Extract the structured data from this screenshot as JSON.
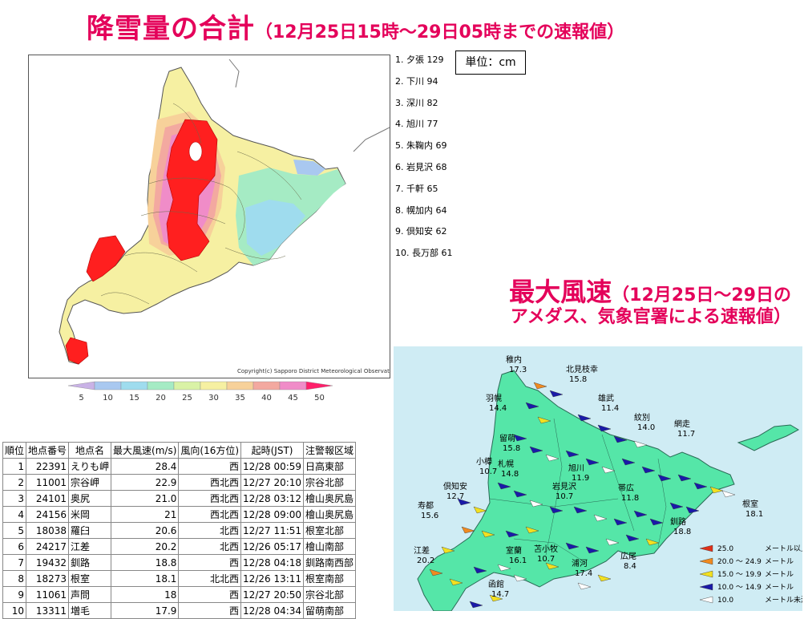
{
  "title_snow": {
    "main": "降雪量の合計",
    "sub": "（12月25日15時～29日05時までの速報値）"
  },
  "unit_label": "単位：cm",
  "snow_ranking": [
    {
      "rank": "1.",
      "name": "夕張",
      "value": "129"
    },
    {
      "rank": "2.",
      "name": "下川",
      "value": "94"
    },
    {
      "rank": "3.",
      "name": "深川",
      "value": "82"
    },
    {
      "rank": "4.",
      "name": "旭川",
      "value": "77"
    },
    {
      "rank": "5.",
      "name": "朱鞠内",
      "value": "69"
    },
    {
      "rank": "6.",
      "name": "岩見沢",
      "value": "68"
    },
    {
      "rank": "7.",
      "name": "千軒",
      "value": "65"
    },
    {
      "rank": "8.",
      "name": "幌加内",
      "value": "64"
    },
    {
      "rank": "9.",
      "name": "倶知安",
      "value": "62"
    },
    {
      "rank": "10.",
      "name": "長万部",
      "value": "61"
    }
  ],
  "copyright": "Copyright(c) Sapporo District Meteorological Observatory",
  "colorbar": {
    "ticks": [
      "5",
      "10",
      "15",
      "20",
      "25",
      "30",
      "35",
      "40",
      "45",
      "50"
    ],
    "colors": [
      "#c9b2e6",
      "#a9c8f0",
      "#9fdcee",
      "#a5ebc4",
      "#d9f2a6",
      "#f6f0a2",
      "#f7d19a",
      "#f3a9a0",
      "#f08cc8",
      "#ff1f6a"
    ]
  },
  "title_wind": {
    "main": "最大風速",
    "sub1": "（12月25日～29日の",
    "sub2": "アメダス、気象官署による速報値）"
  },
  "wind_table": {
    "headers": [
      "順位",
      "地点番号",
      "地点名",
      "最大風速(m/s)",
      "風向(16方位)",
      "起時(JST)",
      "注警報区域"
    ],
    "rows": [
      [
        "1",
        "22391",
        "えりも岬",
        "28.4",
        "西",
        "12/28 00:59",
        "日高東部"
      ],
      [
        "2",
        "11001",
        "宗谷岬",
        "22.9",
        "西北西",
        "12/27 20:10",
        "宗谷北部"
      ],
      [
        "3",
        "24101",
        "奥尻",
        "21.0",
        "西北西",
        "12/28 03:12",
        "檜山奥尻島"
      ],
      [
        "4",
        "24156",
        "米岡",
        "21",
        "西北西",
        "12/28 09:00",
        "檜山奥尻島"
      ],
      [
        "5",
        "18038",
        "羅臼",
        "20.6",
        "北西",
        "12/27 11:51",
        "根室北部"
      ],
      [
        "6",
        "24217",
        "江差",
        "20.2",
        "北西",
        "12/26 05:17",
        "檜山南部"
      ],
      [
        "7",
        "19432",
        "釧路",
        "18.8",
        "西",
        "12/28 04:18",
        "釧路南西部"
      ],
      [
        "8",
        "18273",
        "根室",
        "18.1",
        "北北西",
        "12/26 13:11",
        "根室南部"
      ],
      [
        "9",
        "11061",
        "声問",
        "18",
        "西",
        "12/27 20:50",
        "宗谷北部"
      ],
      [
        "10",
        "13311",
        "増毛",
        "17.9",
        "西",
        "12/28 04:34",
        "留萌南部"
      ]
    ]
  },
  "wind_stations": [
    {
      "name": "稚内",
      "value": "17.3"
    },
    {
      "name": "北見枝幸",
      "value": "15.8"
    },
    {
      "name": "雄武",
      "value": "11.4"
    },
    {
      "name": "羽幌",
      "value": "14.4"
    },
    {
      "name": "紋別",
      "value": "14.0"
    },
    {
      "name": "留萌",
      "value": "15.8"
    },
    {
      "name": "網走",
      "value": "11.7"
    },
    {
      "name": "小樽",
      "value": "10.7"
    },
    {
      "name": "札幌",
      "value": "14.8"
    },
    {
      "name": "旭川",
      "value": "11.9"
    },
    {
      "name": "倶知安",
      "value": "12.7"
    },
    {
      "name": "岩見沢",
      "value": "10.7"
    },
    {
      "name": "帯広",
      "value": "11.8"
    },
    {
      "name": "根室",
      "value": "18.1"
    },
    {
      "name": "寿都",
      "value": "15.6"
    },
    {
      "name": "苫小牧",
      "value": "10.7"
    },
    {
      "name": "釧路",
      "value": "18.8"
    },
    {
      "name": "室蘭",
      "value": "16.1"
    },
    {
      "name": "浦河",
      "value": "17.4"
    },
    {
      "name": "広尾",
      "value": "8.4"
    },
    {
      "name": "江差",
      "value": "20.2"
    },
    {
      "name": "函館",
      "value": "14.7"
    }
  ],
  "wind_legend": [
    {
      "range": "25.0",
      "unit": "メートル以上",
      "color": "#e03018"
    },
    {
      "range": "20.0 ～ 24.9",
      "unit": "メートル",
      "color": "#f08a20"
    },
    {
      "range": "15.0 ～ 19.9",
      "unit": "メートル",
      "color": "#f2e020"
    },
    {
      "range": "10.0 ～ 14.9",
      "unit": "メートル",
      "color": "#1a1aa8"
    },
    {
      "range": "10.0",
      "unit": "メートル未満",
      "color": "#ffffff"
    }
  ],
  "colors": {
    "title": "#e4005a",
    "snow_heavy": "#ff1f1f",
    "land_wind": "#55e6a8",
    "sea_wind": "#cfecf4"
  }
}
